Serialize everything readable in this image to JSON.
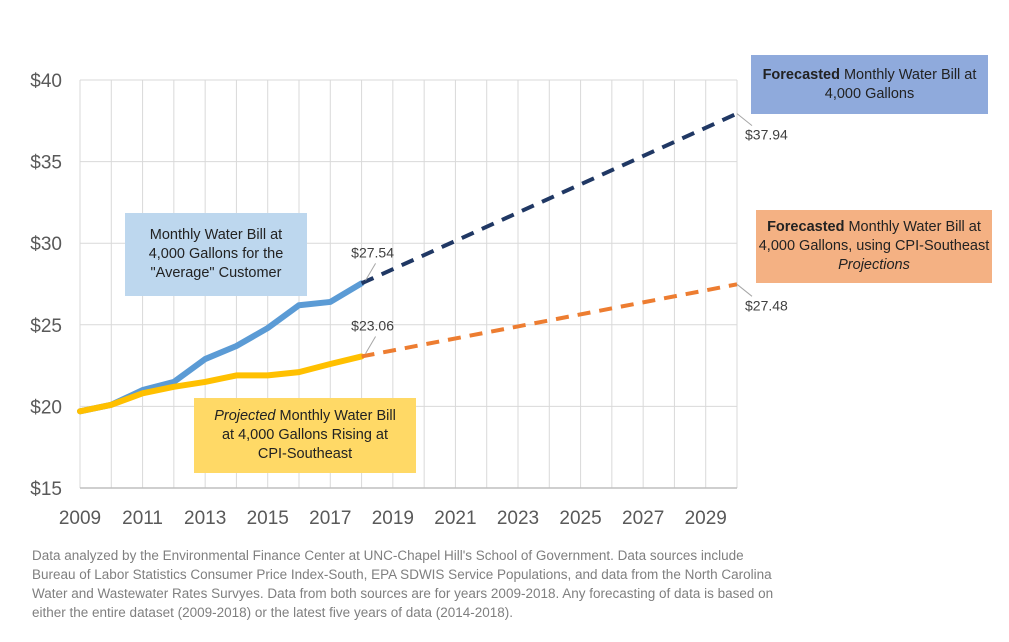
{
  "chart_data": {
    "type": "line",
    "x": [
      2009,
      2010,
      2011,
      2012,
      2013,
      2014,
      2015,
      2016,
      2017,
      2018,
      2019,
      2020,
      2021,
      2022,
      2023,
      2024,
      2025,
      2026,
      2027,
      2028,
      2029,
      2030
    ],
    "xticks": [
      "2009",
      "2011",
      "2013",
      "2015",
      "2017",
      "2019",
      "2021",
      "2023",
      "2025",
      "2027",
      "2029"
    ],
    "yticks": [
      "$15",
      "$20",
      "$25",
      "$30",
      "$35",
      "$40"
    ],
    "ylim": [
      15,
      40
    ],
    "xlim": [
      2009,
      2030
    ],
    "grid": true,
    "series": [
      {
        "key": "average",
        "color": "#5b9bd5",
        "style": "solid",
        "points": [
          [
            2009,
            19.7
          ],
          [
            2010,
            20.1
          ],
          [
            2011,
            21.0
          ],
          [
            2012,
            21.5
          ],
          [
            2013,
            22.9
          ],
          [
            2014,
            23.7
          ],
          [
            2015,
            24.8
          ],
          [
            2016,
            26.2
          ],
          [
            2017,
            26.4
          ],
          [
            2018,
            27.54
          ]
        ]
      },
      {
        "key": "projected_cpi",
        "color": "#ffc000",
        "style": "solid",
        "points": [
          [
            2009,
            19.7
          ],
          [
            2010,
            20.1
          ],
          [
            2011,
            20.8
          ],
          [
            2012,
            21.2
          ],
          [
            2013,
            21.5
          ],
          [
            2014,
            21.9
          ],
          [
            2015,
            21.9
          ],
          [
            2016,
            22.1
          ],
          [
            2017,
            22.6
          ],
          [
            2018,
            23.06
          ]
        ]
      },
      {
        "key": "forecast",
        "color": "#203864",
        "style": "dashed",
        "points": [
          [
            2018,
            27.54
          ],
          [
            2030,
            37.94
          ]
        ]
      },
      {
        "key": "forecast_cpi",
        "color": "#ed7d31",
        "style": "dashed",
        "points": [
          [
            2018,
            23.06
          ],
          [
            2030,
            27.48
          ]
        ]
      }
    ],
    "annotations": [
      {
        "text": "$27.54",
        "x": 2018,
        "y": 27.54,
        "position": "above"
      },
      {
        "text": "$23.06",
        "x": 2018,
        "y": 23.06,
        "position": "above"
      },
      {
        "text": "$37.94",
        "x": 2030,
        "y": 37.94,
        "position": "below-right"
      },
      {
        "text": "$27.48",
        "x": 2030,
        "y": 27.48,
        "position": "below-right"
      }
    ]
  },
  "boxes": {
    "forecast": {
      "bold": "Forecasted",
      "rest": " Monthly Water Bill at 4,000 Gallons"
    },
    "cpi_forecast": {
      "bold": "Forecasted",
      "rest": " Monthly Water Bill at 4,000 Gallons, using CPI-Southeast ",
      "italic": "Projections"
    },
    "average": {
      "text": "Monthly Water Bill at 4,000 Gallons for the \"Average\" Customer"
    },
    "projected": {
      "italic": "Projected",
      "rest": " Monthly Water Bill at 4,000 Gallons Rising at CPI-Southeast"
    }
  },
  "footnote": "Data analyzed by the Environmental Finance Center at UNC-Chapel Hill's School of Government. Data sources include\nBureau of Labor Statistics Consumer Price Index-South, EPA SDWIS Service Populations, and data from the North Carolina\nWater and Wastewater Rates Survyes. Data from both sources are for years 2009-2018. Any forecasting of data is based on\neither the entire dataset (2009-2018) or the latest five years of data (2014-2018)."
}
